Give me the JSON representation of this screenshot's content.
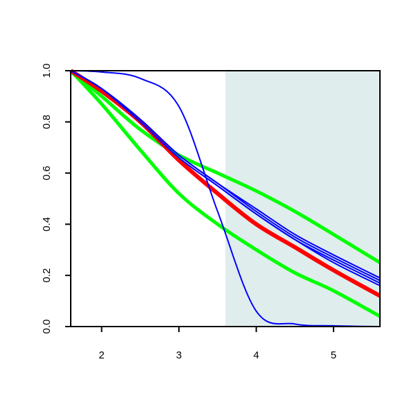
{
  "chart_data": {
    "type": "line",
    "title": "",
    "xlabel": "",
    "ylabel": "",
    "xlim": [
      1.6,
      5.6
    ],
    "ylim": [
      0.0,
      1.0
    ],
    "x_ticks": [
      2,
      3,
      4,
      5
    ],
    "x_tick_labels": [
      "2",
      "3",
      "4",
      "5"
    ],
    "y_ticks": [
      0.0,
      0.2,
      0.4,
      0.6,
      0.8,
      1.0
    ],
    "y_tick_labels": [
      "0.0",
      "0.2",
      "0.4",
      "0.6",
      "0.8",
      "1.0"
    ],
    "grid": false,
    "legend": "none",
    "shaded_region": {
      "x_from": 3.6,
      "x_to": 5.6,
      "color": "#dfeded"
    },
    "x": [
      1.6,
      2.0,
      2.5,
      3.0,
      3.5,
      4.0,
      4.5,
      5.0,
      5.6
    ],
    "series": [
      {
        "color": "#00ff00",
        "width": 5,
        "values": [
          1.0,
          0.9,
          0.77,
          0.67,
          0.6,
          0.53,
          0.45,
          0.36,
          0.25
        ]
      },
      {
        "color": "#00ff00",
        "width": 5,
        "values": [
          1.0,
          0.87,
          0.69,
          0.52,
          0.4,
          0.3,
          0.21,
          0.14,
          0.04
        ]
      },
      {
        "color": "#ff0000",
        "width": 6,
        "values": [
          1.0,
          0.92,
          0.8,
          0.65,
          0.52,
          0.4,
          0.31,
          0.22,
          0.12
        ]
      },
      {
        "color": "#0000ff",
        "width": 2,
        "values": [
          1.0,
          0.93,
          0.8,
          0.66,
          0.55,
          0.44,
          0.34,
          0.26,
          0.17
        ]
      },
      {
        "color": "#0000ff",
        "width": 2,
        "values": [
          1.0,
          0.93,
          0.81,
          0.67,
          0.56,
          0.45,
          0.35,
          0.27,
          0.18
        ]
      },
      {
        "color": "#0000ff",
        "width": 2,
        "values": [
          1.0,
          0.93,
          0.81,
          0.67,
          0.56,
          0.46,
          0.36,
          0.28,
          0.19
        ]
      },
      {
        "color": "#0000ff",
        "width": 2,
        "values": [
          1.0,
          0.93,
          0.8,
          0.66,
          0.55,
          0.44,
          0.34,
          0.25,
          0.16
        ]
      },
      {
        "color": "#0000ff",
        "width": 2,
        "values": [
          1.0,
          0.995,
          0.97,
          0.86,
          0.45,
          0.06,
          0.01,
          0.003,
          0.0
        ]
      }
    ]
  }
}
